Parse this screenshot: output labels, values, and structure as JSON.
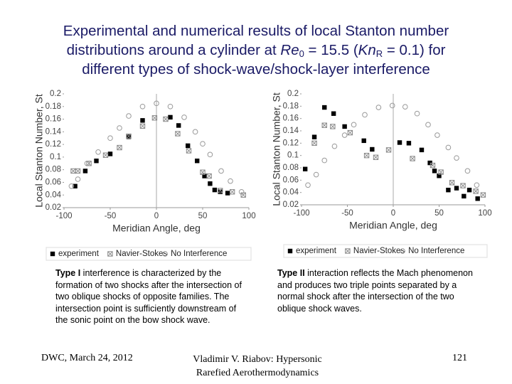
{
  "title": [
    "Experimental and numerical results of local Stanton  number",
    "distributions around a cylinder at ",
    "Re",
    "0",
    " = 15.5 (",
    "Kn",
    "R",
    " = 0.1) for",
    "different types of shock-wave/shock-layer interference"
  ],
  "chart_data": [
    {
      "type": "scatter",
      "xlabel": "Meridian Angle, deg",
      "ylabel": "Local Stanton Number, St",
      "xlim": [
        -100,
        100
      ],
      "xticks": [
        -100,
        -50,
        0,
        50,
        100
      ],
      "ylim": [
        0.02,
        0.2
      ],
      "yticks": [
        0.02,
        0.04,
        0.06,
        0.08,
        0.1,
        0.12,
        0.14,
        0.16,
        0.18,
        0.2
      ],
      "grid": false,
      "series": [
        {
          "name": "experiment",
          "color": "#000000",
          "marker": "square",
          "x": [
            -88,
            -77,
            -65,
            -50,
            -30,
            -15,
            15,
            24,
            34,
            44,
            52,
            58,
            63,
            69,
            77
          ],
          "values": [
            0.054,
            0.078,
            0.094,
            0.105,
            0.132,
            0.158,
            0.163,
            0.15,
            0.118,
            0.094,
            0.07,
            0.058,
            0.048,
            0.045,
            0.043
          ]
        },
        {
          "name": "Navier-Stokes",
          "color": "#888888",
          "marker": "crossed-square",
          "x": [
            -90,
            -85,
            -73,
            -55,
            -40,
            -30,
            -15,
            -2,
            10,
            23,
            35,
            50,
            57,
            69,
            82,
            94
          ],
          "values": [
            0.078,
            0.078,
            0.09,
            0.103,
            0.115,
            0.133,
            0.149,
            0.162,
            0.16,
            0.137,
            0.11,
            0.076,
            0.07,
            0.047,
            0.045,
            0.04
          ]
        },
        {
          "name": "No Interference",
          "color": "#999999",
          "marker": "circle",
          "x": [
            -92,
            -85,
            -75,
            -63,
            -50,
            -40,
            -30,
            -15,
            0,
            15,
            30,
            42,
            50,
            58,
            70,
            80,
            92
          ],
          "values": [
            0.054,
            0.065,
            0.09,
            0.108,
            0.13,
            0.146,
            0.165,
            0.18,
            0.185,
            0.18,
            0.163,
            0.14,
            0.121,
            0.104,
            0.078,
            0.062,
            0.045
          ]
        }
      ]
    },
    {
      "type": "scatter",
      "xlabel": "Meridian Angle, deg",
      "ylabel": "Local Stanton Number, St",
      "xlim": [
        -100,
        100
      ],
      "xticks": [
        -100,
        -50,
        0,
        50,
        100
      ],
      "ylim": [
        0.02,
        0.2
      ],
      "yticks": [
        0.02,
        0.04,
        0.06,
        0.08,
        0.1,
        0.12,
        0.14,
        0.16,
        0.18,
        0.2
      ],
      "grid": false,
      "series": [
        {
          "name": "experiment",
          "color": "#000000",
          "marker": "square",
          "x": [
            -96,
            -86,
            -75,
            -65,
            -53,
            -32,
            -23,
            7,
            17,
            31,
            40,
            45,
            50,
            60,
            69,
            77,
            83,
            92
          ],
          "values": [
            0.078,
            0.13,
            0.178,
            0.168,
            0.147,
            0.124,
            0.11,
            0.121,
            0.12,
            0.109,
            0.088,
            0.075,
            0.067,
            0.044,
            0.047,
            0.034,
            0.044,
            0.03
          ]
        },
        {
          "name": "Navier-Stokes",
          "color": "#888888",
          "marker": "crossed-square",
          "x": [
            -86,
            -75,
            -66,
            -47,
            -29,
            -19,
            -5,
            21,
            43,
            52,
            64,
            76,
            90,
            98
          ],
          "values": [
            0.12,
            0.149,
            0.147,
            0.137,
            0.1,
            0.097,
            0.109,
            0.095,
            0.084,
            0.073,
            0.056,
            0.051,
            0.042,
            0.036
          ]
        },
        {
          "name": "No Interference",
          "color": "#999999",
          "marker": "circle",
          "x": [
            -93,
            -84,
            -75,
            -64,
            -53,
            -43,
            -31,
            -16,
            -1,
            13,
            26,
            38,
            48,
            60,
            69,
            81,
            91
          ],
          "values": [
            0.052,
            0.069,
            0.092,
            0.115,
            0.133,
            0.15,
            0.166,
            0.178,
            0.181,
            0.179,
            0.168,
            0.15,
            0.133,
            0.113,
            0.096,
            0.075,
            0.052
          ]
        }
      ]
    }
  ],
  "captions": [
    {
      "lead": "Type I",
      "text": " interference is characterized by the formation of two shocks after the intersection of two oblique shocks of opposite families. The intersection point is sufficiently downstream of the sonic point on the bow shock wave."
    },
    {
      "lead": "Type II",
      "text": " interaction reflects the Mach phenomenon and produces two triple points separated by a normal shock after the intersection of the two oblique shock waves."
    }
  ],
  "footer": {
    "left": "DWC, March 24, 2012",
    "center": "Vladimir V. Riabov: Hypersonic Rarefied Aerothermodynamics",
    "page": "121"
  }
}
